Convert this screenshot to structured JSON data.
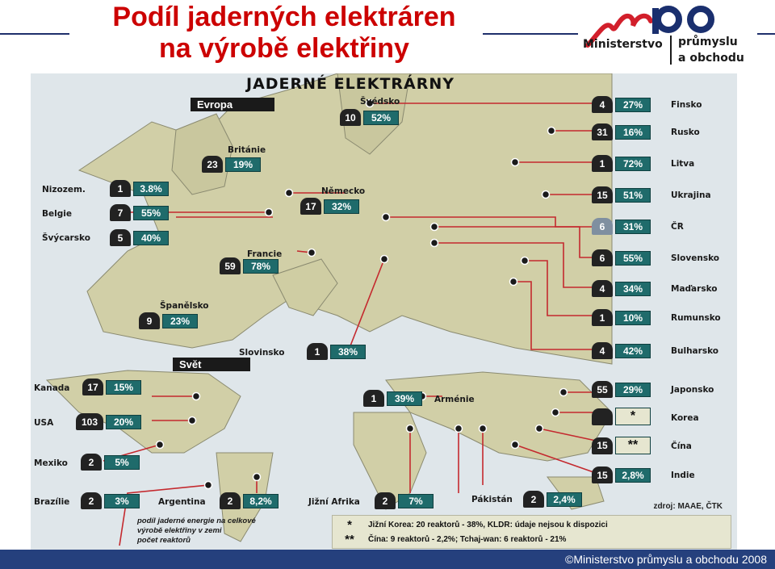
{
  "slide": {
    "title_line1": "Podíl jaderných elektráren",
    "title_line2": "na výrobě elektřiny",
    "footer": "©Ministerstvo průmyslu a obchodu 2008"
  },
  "logo": {
    "mark": "mpo",
    "line1": "Ministerstvo",
    "line2": "průmyslu",
    "line3": "a obchodu"
  },
  "map": {
    "title": "JADERNÉ ELEKTRÁRNY",
    "europe_label": "Evropa",
    "world_label": "Svět",
    "source": "zdroj: MAAE, ČTK",
    "note_lines": [
      "podíl jaderné energie na celkové",
      "výrobě elektřiny v zemi",
      "počet reaktorů"
    ],
    "legend": [
      {
        "star": "*",
        "text": "Jižní Korea: 20 reaktorů - 38%, KLDR: údaje nejsou k dispozici"
      },
      {
        "star": "**",
        "text": "Čína: 9 reaktorů - 2,2%; Tchaj-wan: 6 reaktorů - 21%"
      }
    ],
    "countries": [
      {
        "id": "svedsko",
        "name": "Švédsko",
        "reactors": "10",
        "share": "52%"
      },
      {
        "id": "britanie",
        "name": "Británie",
        "reactors": "23",
        "share": "19%"
      },
      {
        "id": "nizozem",
        "name": "Nizozem.",
        "reactors": "1",
        "share": "3.8%"
      },
      {
        "id": "belgie",
        "name": "Belgie",
        "reactors": "7",
        "share": "55%"
      },
      {
        "id": "svycarsko",
        "name": "Švýcarsko",
        "reactors": "5",
        "share": "40%"
      },
      {
        "id": "nemecko",
        "name": "Německo",
        "reactors": "17",
        "share": "32%"
      },
      {
        "id": "francie",
        "name": "Francie",
        "reactors": "59",
        "share": "78%"
      },
      {
        "id": "spanelsko",
        "name": "Španělsko",
        "reactors": "9",
        "share": "23%"
      },
      {
        "id": "slovinsko",
        "name": "Slovinsko",
        "reactors": "1",
        "share": "38%"
      },
      {
        "id": "finsko",
        "name": "Finsko",
        "reactors": "4",
        "share": "27%"
      },
      {
        "id": "rusko",
        "name": "Rusko",
        "reactors": "31",
        "share": "16%"
      },
      {
        "id": "litva",
        "name": "Litva",
        "reactors": "1",
        "share": "72%"
      },
      {
        "id": "ukrajina",
        "name": "Ukrajina",
        "reactors": "15",
        "share": "51%"
      },
      {
        "id": "cr",
        "name": "ČR",
        "reactors": "6",
        "share": "31%"
      },
      {
        "id": "slovensko",
        "name": "Slovensko",
        "reactors": "6",
        "share": "55%"
      },
      {
        "id": "madarsko",
        "name": "Maďarsko",
        "reactors": "4",
        "share": "34%"
      },
      {
        "id": "rumunsko",
        "name": "Rumunsko",
        "reactors": "1",
        "share": "10%"
      },
      {
        "id": "bulharsko",
        "name": "Bulharsko",
        "reactors": "4",
        "share": "42%"
      },
      {
        "id": "kanada",
        "name": "Kanada",
        "reactors": "17",
        "share": "15%"
      },
      {
        "id": "usa",
        "name": "USA",
        "reactors": "103",
        "share": "20%"
      },
      {
        "id": "mexiko",
        "name": "Mexiko",
        "reactors": "2",
        "share": "5%"
      },
      {
        "id": "brazilie",
        "name": "Brazílie",
        "reactors": "2",
        "share": "3%"
      },
      {
        "id": "argentina",
        "name": "Argentina",
        "reactors": "2",
        "share": "8,2%"
      },
      {
        "id": "jizni-afrika",
        "name": "Jižní Afrika",
        "reactors": "2",
        "share": "7%"
      },
      {
        "id": "armenie",
        "name": "Arménie",
        "reactors": "1",
        "share": "39%"
      },
      {
        "id": "pakistan",
        "name": "Pákistán",
        "reactors": "2",
        "share": "2,4%"
      },
      {
        "id": "japonsko",
        "name": "Japonsko",
        "reactors": "55",
        "share": "29%"
      },
      {
        "id": "korea",
        "name": "Korea",
        "reactors": "",
        "share": "*"
      },
      {
        "id": "cina",
        "name": "Čína",
        "reactors": "15",
        "share": "**"
      },
      {
        "id": "indie",
        "name": "Indie",
        "reactors": "15",
        "share": "2,8%"
      }
    ]
  }
}
